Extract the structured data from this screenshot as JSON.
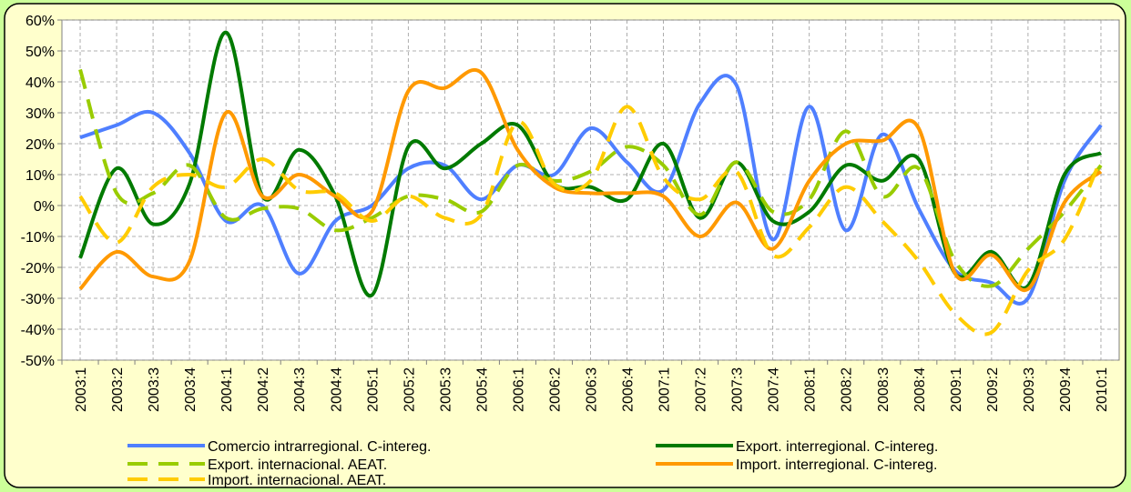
{
  "chart_data": {
    "type": "line",
    "categories": [
      "2003:1",
      "2003:2",
      "2003:3",
      "2003:4",
      "2004:1",
      "2004:2",
      "2004:3",
      "2004:4",
      "2005:1",
      "2005:2",
      "2005:3",
      "2005:4",
      "2006:1",
      "2006:2",
      "2006:3",
      "2006:4",
      "2007:1",
      "2007:2",
      "2007:3",
      "2007:4",
      "2008:1",
      "2008:2",
      "2008:3",
      "2008:4",
      "2009:1",
      "2009:2",
      "2009:3",
      "2009:4",
      "2010:1"
    ],
    "series": [
      {
        "name": "Comercio intrarregional. C-intereg.",
        "color": "#4f7fff",
        "dashed": false,
        "values": [
          22,
          26,
          30,
          17,
          -5,
          0,
          -22,
          -5,
          0,
          12,
          13,
          2,
          13,
          10,
          25,
          14,
          5,
          33,
          39,
          -11,
          32,
          -8,
          23,
          -1,
          -21,
          -25,
          -30,
          8,
          26
        ]
      },
      {
        "name": "Export. interregional. C-intereg.",
        "color": "#007a00",
        "dashed": false,
        "values": [
          -17,
          12,
          -6,
          7,
          56,
          3,
          18,
          3,
          -29,
          19,
          12,
          20,
          26,
          7,
          6,
          2,
          20,
          -4,
          14,
          -5,
          -2,
          13,
          8,
          15,
          -22,
          -15,
          -26,
          10,
          17
        ]
      },
      {
        "name": "Export. internacional. AEAT.",
        "color": "#99cc00",
        "dashed": true,
        "values": [
          44,
          4,
          4,
          13,
          -4,
          -1,
          -1,
          -8,
          -4,
          3,
          2,
          -2,
          13,
          8,
          11,
          19,
          13,
          -3,
          14,
          -2,
          2,
          24,
          3,
          12,
          -18,
          -26,
          -14,
          -2,
          13
        ]
      },
      {
        "name": "Import. interregional. C-intereg.",
        "color": "#ff9900",
        "dashed": false,
        "values": [
          -27,
          -15,
          -23,
          -18,
          30,
          3,
          10,
          3,
          -2,
          37,
          38,
          43,
          18,
          6,
          4,
          4,
          3,
          -10,
          1,
          -14,
          8,
          20,
          21,
          25,
          -22,
          -16,
          -27,
          1,
          11
        ]
      },
      {
        "name": "Import. internacional. AEAT.",
        "color": "#ffcc00",
        "dashed": true,
        "values": [
          3,
          -12,
          6,
          10,
          6,
          15,
          5,
          4,
          -5,
          3,
          -4,
          -3,
          27,
          7,
          8,
          32,
          9,
          2,
          11,
          -16,
          -7,
          6,
          -5,
          -18,
          -35,
          -41,
          -21,
          -11,
          15
        ]
      }
    ],
    "ylim": [
      -50,
      60
    ],
    "yticks": [
      {
        "value": -50,
        "label": "-50%"
      },
      {
        "value": -40,
        "label": "-40%"
      },
      {
        "value": -30,
        "label": "-30%"
      },
      {
        "value": -20,
        "label": "-20%"
      },
      {
        "value": -10,
        "label": "-10%"
      },
      {
        "value": 0,
        "label": "0%"
      },
      {
        "value": 10,
        "label": "10%"
      },
      {
        "value": 20,
        "label": "20%"
      },
      {
        "value": 30,
        "label": "30%"
      },
      {
        "value": 40,
        "label": "40%"
      },
      {
        "value": 50,
        "label": "50%"
      },
      {
        "value": 60,
        "label": "60%"
      }
    ],
    "grid": true
  }
}
